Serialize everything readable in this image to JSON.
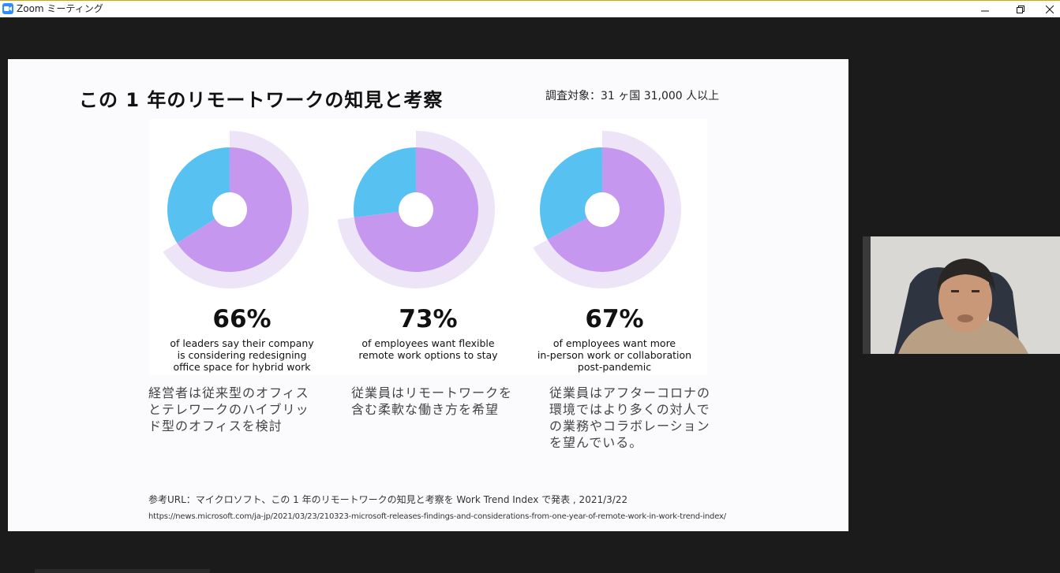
{
  "window": {
    "title": "Zoom ミーティング"
  },
  "slide": {
    "title": "この 1 年のリモートワークの知見と考察",
    "subtitle": "調査対象：31 ヶ国 31,000 人以上",
    "stats": [
      {
        "percent": "66%",
        "value": 66,
        "caption": [
          "of leaders say their company",
          "is considering redesigning",
          "office space for hybrid work"
        ],
        "note_ja": "経営者は従来型のオフィスとテレワークのハイブリッド型のオフィスを検討"
      },
      {
        "percent": "73%",
        "value": 73,
        "caption": [
          "of employees want flexible",
          "remote work options to stay"
        ],
        "note_ja": "従業員はリモートワークを含む柔軟な働き方を希望"
      },
      {
        "percent": "67%",
        "value": 67,
        "caption": [
          "of employees want more",
          "in-person work or collaboration",
          "post-pandemic"
        ],
        "note_ja": "従業員はアフターコロナの環境ではより多くの対人での業務やコラボレーションを望んでいる。"
      }
    ],
    "reference_label": "参考URL：マイクロソフト、この 1 年のリモートワークの知見と考察を Work Trend Index で発表 , 2021/3/22",
    "reference_url": "https://news.microsoft.com/ja-jp/2021/03/23/210323-microsoft-releases-findings-and-considerations-from-one-year-of-remote-work-in-work-trend-index/"
  },
  "colors": {
    "purple": "#c597ef",
    "blue": "#57c1f1",
    "halo": "#ede4f7",
    "zoom_blue": "#2d8cff"
  },
  "icons": {
    "app": "zoom-logo-icon",
    "minimize": "minimize-icon",
    "restore": "restore-icon",
    "close": "close-icon"
  }
}
